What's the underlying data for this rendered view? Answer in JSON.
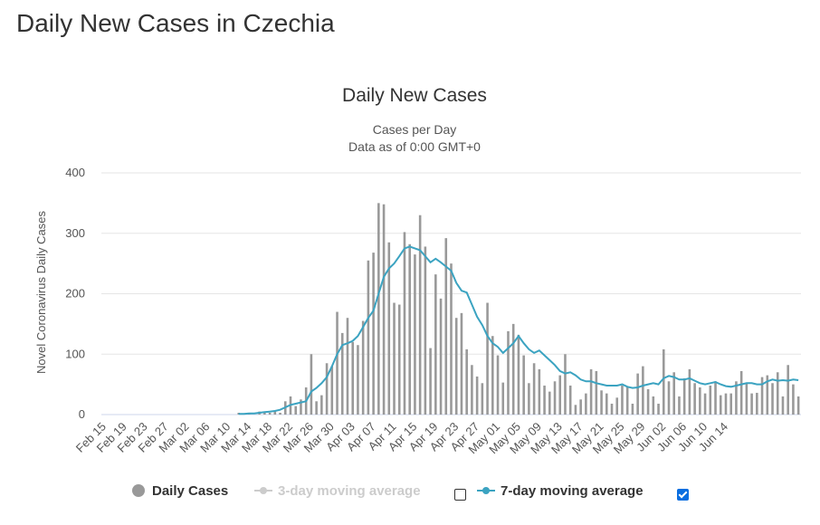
{
  "page": {
    "title": "Daily New Cases in Czechia"
  },
  "chart_data": {
    "type": "bar",
    "title": "Daily New Cases",
    "subtitle_line1": "Cases per Day",
    "subtitle_line2": "Data as of 0:00 GMT+0",
    "ylabel": "Novel Coronavirus Daily Cases",
    "xlabel": "",
    "ylim": [
      0,
      400
    ],
    "yticks": [
      "0",
      "100",
      "200",
      "300",
      "400"
    ],
    "grid": true,
    "legend_position": "bottom",
    "start_date": "Feb 15",
    "xtick_labels": [
      "Feb 15",
      "Feb 19",
      "Feb 23",
      "Feb 27",
      "Mar 02",
      "Mar 06",
      "Mar 10",
      "Mar 14",
      "Mar 18",
      "Mar 22",
      "Mar 26",
      "Mar 30",
      "Apr 03",
      "Apr 07",
      "Apr 11",
      "Apr 15",
      "Apr 19",
      "Apr 23",
      "Apr 27",
      "May 01",
      "May 05",
      "May 09",
      "May 13",
      "May 17",
      "May 21",
      "May 25",
      "May 29",
      "Jun 02",
      "Jun 06",
      "Jun 10",
      "Jun 14"
    ],
    "series": [
      {
        "name": "Daily Cases",
        "color": "#999999",
        "values": [
          0,
          0,
          0,
          0,
          0,
          0,
          0,
          0,
          0,
          0,
          0,
          0,
          0,
          0,
          0,
          0,
          0,
          0,
          0,
          0,
          0,
          0,
          0,
          0,
          0,
          0,
          3,
          0,
          2,
          0,
          5,
          5,
          3,
          5,
          3,
          22,
          30,
          14,
          25,
          45,
          100,
          22,
          32,
          85,
          80,
          170,
          135,
          160,
          120,
          115,
          155,
          255,
          268,
          350,
          348,
          285,
          185,
          182,
          302,
          282,
          265,
          330,
          278,
          110,
          232,
          192,
          292,
          250,
          160,
          168,
          108,
          82,
          63,
          52,
          185,
          130,
          98,
          53,
          138,
          150,
          132,
          98,
          52,
          85,
          75,
          48,
          38,
          55,
          65,
          100,
          48,
          16,
          25,
          35,
          75,
          72,
          40,
          35,
          18,
          28,
          48,
          45,
          18,
          68,
          80,
          42,
          30,
          18,
          108,
          55,
          70,
          30,
          60,
          75,
          52,
          45,
          35,
          48,
          55,
          32,
          35,
          35,
          55,
          72,
          52,
          35,
          36,
          62,
          65,
          52,
          70,
          30,
          82,
          50,
          30
        ],
        "show": true
      },
      {
        "name": "3-day moving average",
        "color": "#cccccc",
        "show": false
      },
      {
        "name": "7-day moving average",
        "color": "#3ba3c1",
        "values": [
          null,
          null,
          null,
          null,
          null,
          null,
          null,
          null,
          null,
          null,
          null,
          null,
          null,
          null,
          null,
          null,
          null,
          null,
          null,
          null,
          null,
          null,
          null,
          null,
          null,
          null,
          1,
          1,
          2,
          2,
          3,
          4,
          5,
          6,
          8,
          12,
          16,
          18,
          20,
          22,
          38,
          44,
          52,
          62,
          80,
          100,
          115,
          118,
          122,
          130,
          145,
          160,
          172,
          200,
          228,
          242,
          250,
          262,
          275,
          278,
          275,
          272,
          262,
          252,
          258,
          252,
          245,
          238,
          218,
          205,
          202,
          182,
          162,
          148,
          130,
          118,
          112,
          102,
          110,
          118,
          130,
          118,
          108,
          102,
          106,
          98,
          90,
          82,
          72,
          68,
          70,
          65,
          58,
          55,
          55,
          52,
          50,
          48,
          48,
          48,
          50,
          46,
          44,
          45,
          48,
          50,
          52,
          50,
          60,
          64,
          62,
          58,
          58,
          60,
          56,
          52,
          50,
          52,
          54,
          50,
          47,
          46,
          48,
          50,
          52,
          52,
          50,
          50,
          55,
          58,
          56,
          57,
          56,
          58,
          57
        ]
      }
    ]
  },
  "legend": {
    "daily": "Daily Cases",
    "ma3": "3-day moving average",
    "ma7": "7-day moving average"
  }
}
